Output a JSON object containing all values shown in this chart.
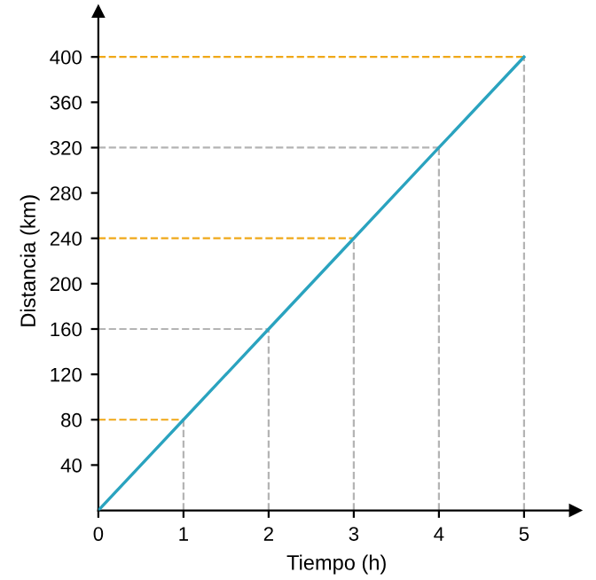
{
  "chart_data": {
    "type": "line",
    "xlabel": "Tiempo (h)",
    "ylabel": "Distancia (km)",
    "x": [
      0,
      1,
      2,
      3,
      4,
      5
    ],
    "series": [
      {
        "color": "#2aa3bf",
        "values": [
          0,
          80,
          160,
          240,
          320,
          400
        ]
      }
    ],
    "xlim": [
      0,
      5.6
    ],
    "ylim": [
      0,
      440
    ],
    "xticks": [
      0,
      1,
      2,
      3,
      4,
      5
    ],
    "yticks": [
      40,
      80,
      120,
      160,
      200,
      240,
      280,
      320,
      360,
      400
    ],
    "ref_lines": [
      {
        "axis": "y",
        "value": 80,
        "color": "#f0a818",
        "line_style": "dashed"
      },
      {
        "axis": "y",
        "value": 160,
        "color": "#b4b4b4",
        "line_style": "dashed"
      },
      {
        "axis": "y",
        "value": 240,
        "color": "#f0a818",
        "line_style": "dashed"
      },
      {
        "axis": "y",
        "value": 320,
        "color": "#b4b4b4",
        "line_style": "dashed"
      },
      {
        "axis": "y",
        "value": 400,
        "color": "#f0a818",
        "line_style": "dashed"
      },
      {
        "axis": "x",
        "value": 1,
        "color": "#b4b4b4",
        "line_style": "dashed"
      },
      {
        "axis": "x",
        "value": 2,
        "color": "#b4b4b4",
        "line_style": "dashed"
      },
      {
        "axis": "x",
        "value": 3,
        "color": "#b4b4b4",
        "line_style": "dashed"
      },
      {
        "axis": "x",
        "value": 4,
        "color": "#b4b4b4",
        "line_style": "dashed"
      },
      {
        "axis": "x",
        "value": 5,
        "color": "#b4b4b4",
        "line_style": "dashed"
      }
    ],
    "marker": "none",
    "line_style": "solid"
  }
}
